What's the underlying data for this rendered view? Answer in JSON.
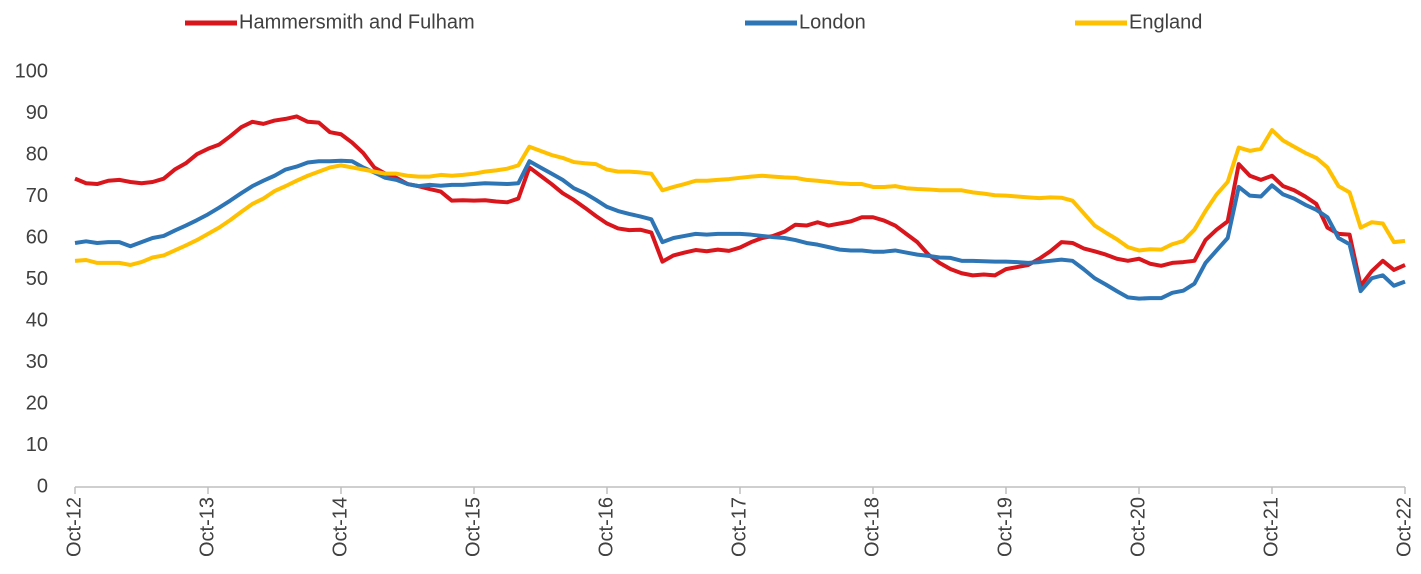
{
  "chart_data": {
    "type": "line",
    "categories": [
      "Oct-12",
      null,
      null,
      null,
      null,
      null,
      null,
      null,
      null,
      null,
      null,
      null,
      "Oct-13",
      null,
      null,
      null,
      null,
      null,
      null,
      null,
      null,
      null,
      null,
      null,
      "Oct-14",
      null,
      null,
      null,
      null,
      null,
      null,
      null,
      null,
      null,
      null,
      null,
      "Oct-15",
      null,
      null,
      null,
      null,
      null,
      null,
      null,
      null,
      null,
      null,
      null,
      "Oct-16",
      null,
      null,
      null,
      null,
      null,
      null,
      null,
      null,
      null,
      null,
      null,
      "Oct-17",
      null,
      null,
      null,
      null,
      null,
      null,
      null,
      null,
      null,
      null,
      null,
      "Oct-18",
      null,
      null,
      null,
      null,
      null,
      null,
      null,
      null,
      null,
      null,
      null,
      "Oct-19",
      null,
      null,
      null,
      null,
      null,
      null,
      null,
      null,
      null,
      null,
      null,
      "Oct-20",
      null,
      null,
      null,
      null,
      null,
      null,
      null,
      null,
      null,
      null,
      null,
      "Oct-21",
      null,
      null,
      null,
      null,
      null,
      null,
      null,
      null,
      null,
      null,
      null,
      "Oct-22"
    ],
    "series": [
      {
        "name": "Hammersmith and Fulham",
        "color": "#d9161c",
        "values": [
          74.3,
          73.2,
          73,
          73.8,
          74,
          73.5,
          73.2,
          73.5,
          74.3,
          76.5,
          78,
          80.2,
          81.5,
          82.5,
          84.5,
          86.7,
          88,
          87.5,
          88.3,
          88.7,
          89.3,
          88,
          87.8,
          85.5,
          85,
          83,
          80.5,
          77,
          75.5,
          74.5,
          73,
          72.5,
          71.8,
          71.2,
          69,
          69.1,
          69,
          69.1,
          68.8,
          68.6,
          69.5,
          77,
          75,
          73,
          70.8,
          69.2,
          67.3,
          65.3,
          63.5,
          62.3,
          61.9,
          62,
          61.3,
          54.3,
          55.8,
          56.5,
          57.1,
          56.8,
          57.2,
          56.9,
          57.7,
          59,
          60,
          60.5,
          61.5,
          63.2,
          63,
          63.8,
          63,
          63.5,
          64,
          65,
          65,
          64.2,
          63,
          61,
          59,
          56,
          54,
          52.5,
          51.5,
          51,
          51.2,
          51,
          52.5,
          53,
          53.5,
          55,
          56.8,
          59,
          58.8,
          57.5,
          56.8,
          56,
          55,
          54.5,
          55,
          53.8,
          53.3,
          54,
          54.2,
          54.5,
          59.5,
          62,
          64,
          77.8,
          75,
          74,
          75,
          72.5,
          71.5,
          70,
          68.2,
          62.5,
          61,
          60.8,
          48.5,
          52,
          54.5,
          52.3,
          53.5
        ]
      },
      {
        "name": "London",
        "color": "#2e75b6",
        "values": [
          58.8,
          59.2,
          58.8,
          59,
          59,
          58,
          59,
          60,
          60.5,
          61.8,
          63,
          64.3,
          65.7,
          67.3,
          69,
          70.8,
          72.5,
          73.8,
          75,
          76.5,
          77.2,
          78.2,
          78.5,
          78.5,
          78.6,
          78.5,
          77,
          75.8,
          74.5,
          74,
          73,
          72.5,
          72.8,
          72.6,
          72.8,
          72.8,
          73,
          73.2,
          73.1,
          73,
          73.2,
          78.5,
          77,
          75.5,
          74,
          72,
          70.8,
          69.2,
          67.5,
          66.5,
          65.8,
          65.2,
          64.5,
          59,
          60,
          60.5,
          61,
          60.8,
          61,
          61,
          61,
          60.8,
          60.5,
          60.2,
          60,
          59.5,
          58.8,
          58.4,
          57.8,
          57.2,
          57,
          57,
          56.7,
          56.7,
          57,
          56.5,
          56,
          55.7,
          55.3,
          55.2,
          54.5,
          54.5,
          54.4,
          54.3,
          54.3,
          54.2,
          54,
          54.2,
          54.5,
          54.8,
          54.5,
          52.5,
          50.3,
          48.8,
          47.2,
          45.7,
          45.4,
          45.5,
          45.5,
          46.8,
          47.3,
          49,
          54,
          57,
          60,
          72.3,
          70.2,
          70,
          72.7,
          70.5,
          69.5,
          68,
          66.8,
          65,
          60,
          58.5,
          47.2,
          50.3,
          51,
          48.5,
          49.5
        ]
      },
      {
        "name": "England",
        "color": "#ffc000",
        "values": [
          54.5,
          54.7,
          54,
          54,
          54,
          53.5,
          54.2,
          55.3,
          55.8,
          57,
          58.2,
          59.5,
          61,
          62.5,
          64.3,
          66.3,
          68.2,
          69.5,
          71.3,
          72.5,
          73.8,
          75,
          76,
          77,
          77.5,
          77,
          76.5,
          76,
          75.5,
          75.5,
          75,
          74.8,
          74.8,
          75.2,
          75,
          75.2,
          75.5,
          76,
          76.3,
          76.7,
          77.5,
          82,
          81,
          80,
          79.3,
          78.3,
          78,
          77.8,
          76.5,
          76,
          76,
          75.8,
          75.5,
          71.5,
          72.3,
          73,
          73.8,
          73.8,
          74,
          74.2,
          74.5,
          74.8,
          75,
          74.8,
          74.6,
          74.5,
          74,
          73.8,
          73.5,
          73.2,
          73,
          73,
          72.3,
          72.3,
          72.5,
          72,
          71.8,
          71.7,
          71.5,
          71.5,
          71.5,
          71,
          70.7,
          70.3,
          70.2,
          70,
          69.8,
          69.6,
          69.8,
          69.7,
          69,
          66,
          63,
          61.3,
          59.7,
          57.8,
          57,
          57.3,
          57.2,
          58.5,
          59.3,
          62,
          66.5,
          70.5,
          73.5,
          81.8,
          81,
          81.5,
          86,
          83.5,
          82,
          80.5,
          79.3,
          77,
          72.5,
          71,
          62.5,
          63.8,
          63.5,
          59,
          59.3
        ]
      }
    ],
    "ylim": [
      0,
      100
    ],
    "yticks": [
      0,
      10,
      20,
      30,
      40,
      50,
      60,
      70,
      80,
      90,
      100
    ]
  }
}
